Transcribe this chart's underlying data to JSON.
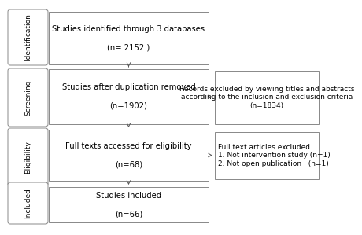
{
  "background_color": "#ffffff",
  "box_edge_color": "#888888",
  "box_face_color": "#ffffff",
  "arrow_color": "#555555",
  "text_color": "#000000",
  "side_labels": [
    "Identification",
    "Screening",
    "Eligibility",
    "Included"
  ],
  "main_boxes": [
    {
      "text": "Studies identified through 3 databases\n\n(n= 2152 )",
      "fontsize": 7.2
    },
    {
      "text": "Studies after duplication removed\n\n(n=1902)",
      "fontsize": 7.2
    },
    {
      "text": "Full texts accessed for eligibility\n\n(n=68)",
      "fontsize": 7.2
    },
    {
      "text": "Studies included\n\n(n=66)",
      "fontsize": 7.2
    }
  ],
  "side_boxes": [
    {
      "text": "Records excluded by viewing titles and abstracts\naccording to the inclusion and exclusion criteria\n(n=1834)",
      "fontsize": 6.5,
      "align": "center"
    },
    {
      "text": "Full text articles excluded\n1. Not intervention study (n=1)\n2. Not open publication   (n=1)",
      "fontsize": 6.5,
      "align": "left"
    }
  ]
}
